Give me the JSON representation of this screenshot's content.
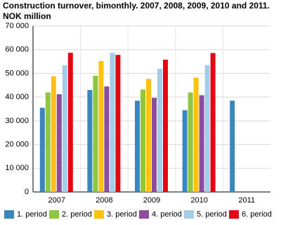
{
  "chart_data": {
    "type": "bar",
    "title": [
      "Construction turnover, bimonthly. 2007, 2008, 2009, 2010 and 2011.",
      "NOK million"
    ],
    "categories": [
      "2007",
      "2008",
      "2009",
      "2010",
      "2011"
    ],
    "series": [
      {
        "name": "1. period",
        "color": "#3a87c0",
        "values": [
          35500,
          43000,
          38500,
          34500,
          38500
        ]
      },
      {
        "name": "2. period",
        "color": "#8dc63f",
        "values": [
          42000,
          49000,
          43200,
          42000,
          null
        ]
      },
      {
        "name": "3. period",
        "color": "#ffc20e",
        "values": [
          48800,
          55200,
          47700,
          48200,
          null
        ]
      },
      {
        "name": "4. period",
        "color": "#8e4c9f",
        "values": [
          41200,
          44500,
          39700,
          40800,
          null
        ]
      },
      {
        "name": "5. period",
        "color": "#a5cde8",
        "values": [
          53500,
          58700,
          52000,
          53500,
          null
        ]
      },
      {
        "name": "6. period",
        "color": "#e30613",
        "values": [
          58700,
          57800,
          55800,
          58600,
          null
        ]
      }
    ],
    "ylim": [
      0,
      70000
    ],
    "yticks": [
      0,
      {
        "value": 10000,
        "label": "10 000"
      },
      {
        "value": 20000,
        "label": "20 000"
      },
      {
        "value": 30000,
        "label": "30 000"
      },
      {
        "value": 40000,
        "label": "40 000"
      },
      {
        "value": 50000,
        "label": "50 000"
      },
      {
        "value": 60000,
        "label": "60 000"
      },
      {
        "value": 70000,
        "label": "70 000"
      }
    ],
    "grid": true
  }
}
